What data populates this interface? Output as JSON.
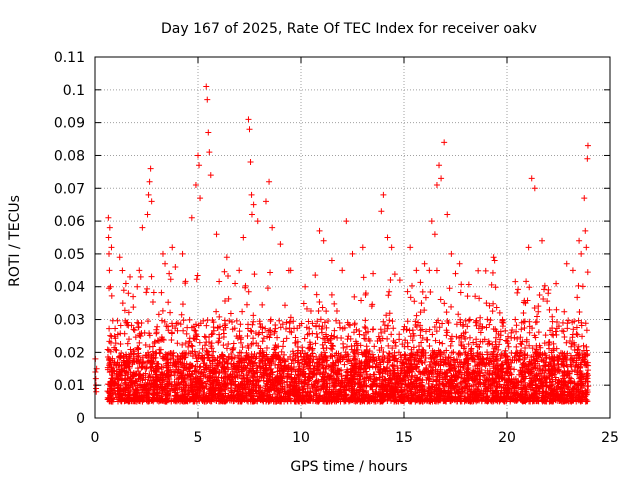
{
  "chart_data": {
    "type": "scatter",
    "title": "Day 167 of 2025, Rate Of TEC Index for receiver oakv",
    "xlabel": "GPS time / hours",
    "ylabel": "ROTI / TECUs",
    "xlim": [
      0,
      25
    ],
    "ylim": [
      0,
      0.11
    ],
    "xticks": [
      "0",
      "5",
      "10",
      "15",
      "20",
      "25"
    ],
    "yticks": [
      "0",
      "0.01",
      "0.02",
      "0.03",
      "0.04",
      "0.05",
      "0.06",
      "0.07",
      "0.08",
      "0.09",
      "0.1",
      "0.11"
    ],
    "grid": true,
    "marker": "plus",
    "color": "#ff0000",
    "series": [
      {
        "name": "ROTI",
        "x": [
          0.02,
          0.02,
          0.04,
          0.05,
          0.05,
          0.06,
          0.08,
          0.65,
          0.66,
          0.68,
          0.7,
          0.72,
          0.75,
          0.8,
          1.2,
          1.35,
          1.5,
          1.62,
          1.7,
          1.85,
          2.05,
          2.15,
          2.3,
          2.55,
          2.6,
          2.65,
          2.7,
          2.75,
          3.3,
          3.4,
          3.6,
          3.75,
          3.9,
          4.25,
          4.7,
          4.9,
          5.0,
          5.05,
          5.1,
          5.4,
          5.45,
          5.5,
          5.55,
          5.62,
          5.9,
          6.4,
          6.8,
          7.0,
          7.2,
          7.45,
          7.5,
          7.55,
          7.6,
          7.62,
          7.7,
          7.9,
          8.3,
          8.45,
          8.6,
          9.0,
          9.5,
          10.2,
          10.9,
          11.1,
          11.5,
          12.0,
          12.2,
          12.5,
          13.0,
          13.5,
          13.9,
          14.0,
          14.2,
          14.4,
          14.8,
          15.3,
          15.6,
          16.0,
          16.35,
          16.5,
          16.6,
          16.7,
          16.8,
          16.95,
          17.1,
          17.3,
          17.5,
          17.7,
          18.2,
          18.5,
          19.0,
          19.35,
          19.4,
          19.8,
          20.4,
          20.8,
          20.9,
          21.05,
          21.2,
          21.35,
          21.7,
          22.0,
          22.4,
          22.9,
          23.2,
          23.5,
          23.6,
          23.75,
          23.8,
          23.85,
          23.9,
          23.93
        ],
        "y": [
          0.018,
          0.014,
          0.012,
          0.01,
          0.009,
          0.008,
          0.015,
          0.061,
          0.055,
          0.05,
          0.045,
          0.058,
          0.04,
          0.052,
          0.049,
          0.035,
          0.041,
          0.038,
          0.043,
          0.037,
          0.04,
          0.045,
          0.058,
          0.062,
          0.068,
          0.072,
          0.076,
          0.066,
          0.05,
          0.047,
          0.044,
          0.052,
          0.046,
          0.05,
          0.061,
          0.071,
          0.08,
          0.077,
          0.067,
          0.101,
          0.097,
          0.087,
          0.081,
          0.074,
          0.056,
          0.049,
          0.041,
          0.045,
          0.055,
          0.091,
          0.088,
          0.078,
          0.068,
          0.062,
          0.065,
          0.06,
          0.066,
          0.072,
          0.058,
          0.053,
          0.045,
          0.04,
          0.057,
          0.054,
          0.048,
          0.045,
          0.06,
          0.05,
          0.052,
          0.044,
          0.063,
          0.068,
          0.055,
          0.052,
          0.042,
          0.052,
          0.045,
          0.047,
          0.06,
          0.056,
          0.071,
          0.077,
          0.073,
          0.084,
          0.062,
          0.05,
          0.044,
          0.047,
          0.03,
          0.024,
          0.035,
          0.049,
          0.048,
          0.028,
          0.03,
          0.032,
          0.035,
          0.052,
          0.073,
          0.07,
          0.054,
          0.038,
          0.033,
          0.047,
          0.045,
          0.054,
          0.05,
          0.067,
          0.057,
          0.052,
          0.079,
          0.083
        ]
      }
    ],
    "dense_band": {
      "x_range": [
        0.6,
        23.95
      ],
      "typical_range": [
        0.005,
        0.03
      ],
      "sparse_gap": [
        0.1,
        0.6
      ]
    }
  }
}
